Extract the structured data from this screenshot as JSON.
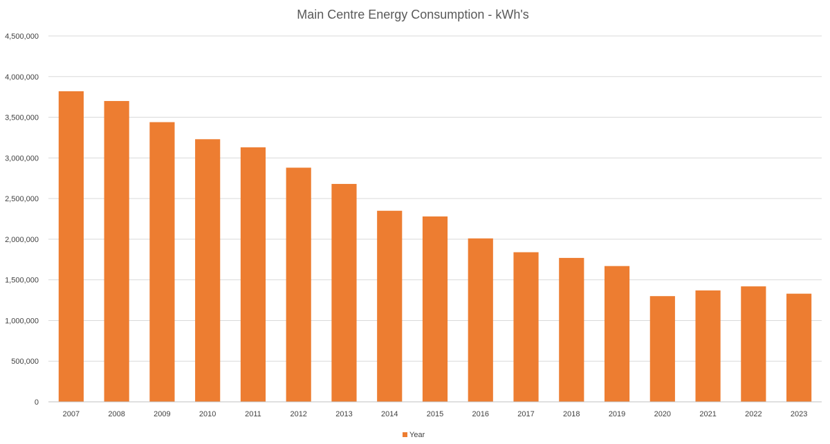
{
  "chart_data": {
    "type": "bar",
    "title": "Main Centre Energy Consumption - kWh's",
    "xlabel": "",
    "ylabel": "",
    "categories": [
      "2007",
      "2008",
      "2009",
      "2010",
      "2011",
      "2012",
      "2013",
      "2014",
      "2015",
      "2016",
      "2017",
      "2018",
      "2019",
      "2020",
      "2021",
      "2022",
      "2023"
    ],
    "series": [
      {
        "name": "Year",
        "color": "#ed7d31",
        "values": [
          3820000,
          3700000,
          3440000,
          3230000,
          3130000,
          2880000,
          2680000,
          2350000,
          2280000,
          2010000,
          1840000,
          1770000,
          1670000,
          1300000,
          1370000,
          1420000,
          1330000
        ]
      }
    ],
    "ylim": [
      0,
      4500000
    ],
    "yticks": [
      "0",
      "500,000",
      "1,000,000",
      "1,500,000",
      "2,000,000",
      "2,500,000",
      "3,000,000",
      "3,500,000",
      "4,000,000",
      "4,500,000"
    ],
    "grid": true,
    "legend_position": "bottom"
  }
}
